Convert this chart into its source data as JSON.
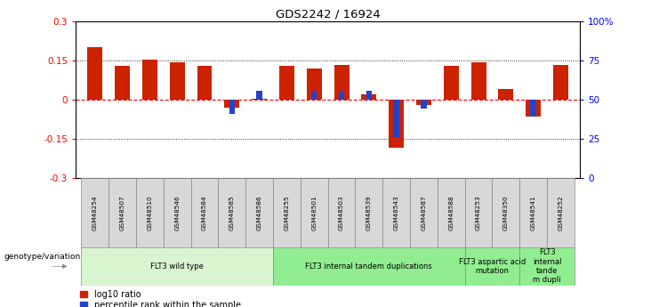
{
  "title": "GDS2242 / 16924",
  "samples": [
    "GSM48254",
    "GSM48507",
    "GSM48510",
    "GSM48546",
    "GSM48584",
    "GSM48585",
    "GSM48586",
    "GSM48255",
    "GSM48501",
    "GSM48503",
    "GSM48539",
    "GSM48543",
    "GSM48587",
    "GSM48588",
    "GSM48253",
    "GSM48350",
    "GSM48541",
    "GSM48252"
  ],
  "log10_ratio": [
    0.2,
    0.13,
    0.155,
    0.145,
    0.13,
    -0.03,
    0.005,
    0.13,
    0.12,
    0.135,
    0.02,
    -0.185,
    -0.02,
    0.13,
    0.145,
    0.04,
    -0.065,
    0.135
  ],
  "percentile_rank_offset": [
    0.0,
    0.0,
    0.0,
    0.0,
    0.0,
    -0.055,
    0.035,
    0.0,
    0.035,
    0.035,
    0.035,
    -0.145,
    -0.035,
    0.0,
    0.0,
    0.0,
    -0.065,
    0.0
  ],
  "groups": [
    {
      "label": "FLT3 wild type",
      "start": 0,
      "end": 6,
      "color": "#d8f5d0"
    },
    {
      "label": "FLT3 internal tandem duplications",
      "start": 7,
      "end": 13,
      "color": "#90ee90"
    },
    {
      "label": "FLT3 aspartic acid\nmutation",
      "start": 14,
      "end": 15,
      "color": "#90ee90"
    },
    {
      "label": "FLT3\ninternal\ntande\nm dupli",
      "start": 16,
      "end": 17,
      "color": "#90ee90"
    }
  ],
  "ylim": [
    -0.3,
    0.3
  ],
  "y2lim": [
    0,
    100
  ],
  "yticks": [
    -0.3,
    -0.15,
    0.0,
    0.15,
    0.3
  ],
  "ytick_labels": [
    "-0.3",
    "-0.15",
    "0",
    "0.15",
    "0.3"
  ],
  "y2ticks": [
    0,
    25,
    50,
    75,
    100
  ],
  "y2tick_labels": [
    "0",
    "25",
    "50",
    "75",
    "100%"
  ],
  "bar_color_red": "#cc2200",
  "bar_color_blue": "#2244cc",
  "legend_label_red": "log10 ratio",
  "legend_label_blue": "percentile rank within the sample",
  "group_label": "genotype/variation",
  "bar_width": 0.55
}
